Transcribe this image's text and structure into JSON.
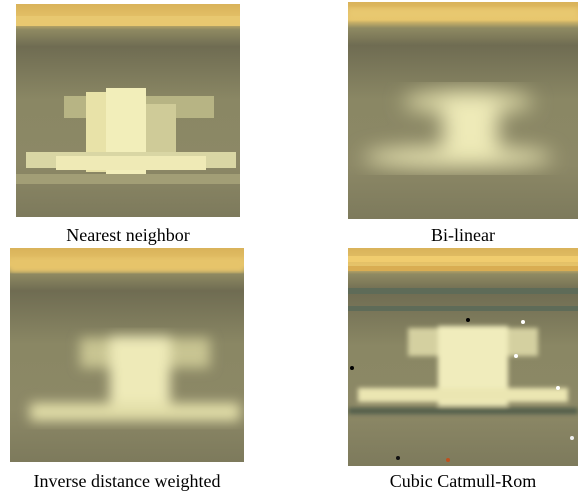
{
  "panels": [
    {
      "caption": "Nearest neighbor"
    },
    {
      "caption": "Bi-linear"
    },
    {
      "caption": "Inverse distance weighted"
    },
    {
      "caption": "Cubic Catmull-Rom"
    }
  ]
}
